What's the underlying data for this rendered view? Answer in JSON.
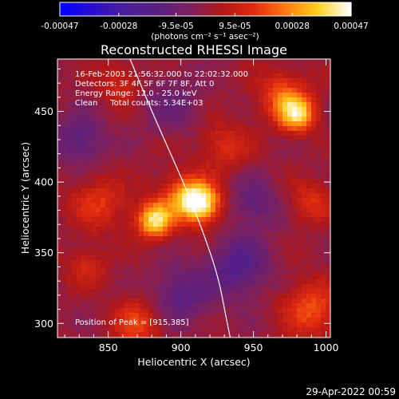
{
  "colorbar": {
    "tick_labels": [
      "-0.00047",
      "-0.00028",
      "-9.5e-05",
      "9.5e-05",
      "0.00028",
      "0.00047"
    ],
    "tick_values": [
      -0.00047,
      -0.00028,
      -9.5e-05,
      9.5e-05,
      0.00028,
      0.00047
    ],
    "range": [
      -0.00047,
      0.00047
    ],
    "unit_label": "(photons cm⁻² s⁻¹ asec⁻²)",
    "colors": [
      "#0000ff",
      "#2a0ecc",
      "#4a1f99",
      "#5a1f7f",
      "#7a2060",
      "#b01818",
      "#e02a10",
      "#ff7a10",
      "#ffd020",
      "#ffffff"
    ]
  },
  "chart_data": {
    "type": "heatmap",
    "title": "Reconstructed RHESSI Image",
    "xlabel": "Heliocentric X (arcsec)",
    "ylabel": "Heliocentric Y (arcsec)",
    "xlim": [
      815,
      1003
    ],
    "ylim": [
      290,
      487
    ],
    "x_ticks": [
      850,
      900,
      950,
      1000
    ],
    "y_ticks": [
      300,
      350,
      400,
      450
    ],
    "annotations": [
      "16-Feb-2003 21:56:32.000 to 22:02:32.000",
      "Detectors: 3F 4F 5F 6F 7F 8F, Att 0",
      "Energy Range: 12.0 - 25.0 keV",
      "Clean     Total counts: 5.34E+03"
    ],
    "peak_label": "Position of Peak = [915,385]",
    "peak": [
      915,
      385
    ],
    "sources": [
      {
        "x": 913,
        "y": 385,
        "sigma": 10,
        "amp": 0.00047
      },
      {
        "x": 882,
        "y": 373,
        "sigma": 9,
        "amp": 0.0004
      },
      {
        "x": 900,
        "y": 392,
        "sigma": 11,
        "amp": 0.00018
      },
      {
        "x": 980,
        "y": 448,
        "sigma": 9,
        "amp": 0.00036
      },
      {
        "x": 970,
        "y": 462,
        "sigma": 12,
        "amp": 0.0002
      },
      {
        "x": 843,
        "y": 385,
        "sigma": 13,
        "amp": 0.00016
      },
      {
        "x": 858,
        "y": 470,
        "sigma": 10,
        "amp": 0.00012
      },
      {
        "x": 930,
        "y": 425,
        "sigma": 12,
        "amp": 0.00014
      },
      {
        "x": 990,
        "y": 310,
        "sigma": 14,
        "amp": 0.0002
      },
      {
        "x": 870,
        "y": 300,
        "sigma": 12,
        "amp": 0.00018
      },
      {
        "x": 990,
        "y": 385,
        "sigma": 10,
        "amp": 0.00015
      },
      {
        "x": 835,
        "y": 340,
        "sigma": 10,
        "amp": 0.00012
      },
      {
        "x": 940,
        "y": 340,
        "sigma": 14,
        "amp": -0.0002
      },
      {
        "x": 900,
        "y": 320,
        "sigma": 14,
        "amp": -0.00016
      },
      {
        "x": 830,
        "y": 430,
        "sigma": 12,
        "amp": -0.00016
      },
      {
        "x": 950,
        "y": 385,
        "sigma": 12,
        "amp": -0.00013
      },
      {
        "x": 895,
        "y": 455,
        "sigma": 14,
        "amp": -0.0001
      }
    ],
    "limb_curve": [
      {
        "x": 865,
        "y": 487
      },
      {
        "x": 880,
        "y": 450
      },
      {
        "x": 893,
        "y": 420
      },
      {
        "x": 905,
        "y": 392
      },
      {
        "x": 917,
        "y": 360
      },
      {
        "x": 926,
        "y": 332
      },
      {
        "x": 931,
        "y": 305
      },
      {
        "x": 934,
        "y": 290
      }
    ]
  },
  "footer": {
    "timestamp": "29-Apr-2022 00:59"
  }
}
